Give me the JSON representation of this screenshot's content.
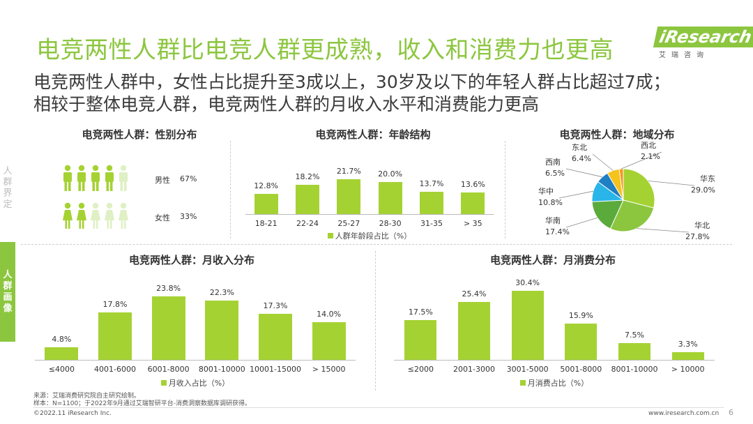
{
  "header": {
    "title": "电竞两性人群比电竞人群更成熟，收入和消费力也更高",
    "subtitle_line1": "电竞两性人群中，女性占比提升至3成以上，30岁及以下的年轻人群占比超过7成；",
    "subtitle_line2": "相较于整体电竞人群，电竞两性人群的月收入水平和消费能力更高"
  },
  "logo": {
    "main": "iResearch",
    "sub": "艾瑞咨询"
  },
  "side": {
    "upper": [
      "人",
      "群",
      "界",
      "定"
    ],
    "tab": [
      "人",
      "群",
      "画",
      "像"
    ]
  },
  "colors": {
    "accent": "#8cc63f",
    "bar": "#a5d233",
    "pale": "#dff0c4"
  },
  "gender": {
    "title": "电竞两性人群：性别分布",
    "rows": [
      {
        "label": "男性",
        "value": "67%",
        "icon": "male-person-icon"
      },
      {
        "label": "女性",
        "value": "33%",
        "icon": "female-person-icon"
      }
    ]
  },
  "chart_data": [
    {
      "type": "bar",
      "id": "age",
      "title": "电竞两性人群：年龄结构",
      "categories": [
        "18-21",
        "22-24",
        "25-27",
        "28-30",
        "31-35",
        "> 35"
      ],
      "values": [
        12.8,
        18.2,
        21.7,
        20.0,
        13.7,
        13.6
      ],
      "labels": [
        "12.8%",
        "18.2%",
        "21.7%",
        "20.0%",
        "13.7%",
        "13.6%"
      ],
      "legend": "人群年龄段占比（%）"
    },
    {
      "type": "pie",
      "id": "region",
      "title": "电竞两性人群：地域分布",
      "slices": [
        {
          "name": "华东",
          "value": 29.0,
          "label": "29.0%",
          "color": "#a5d233"
        },
        {
          "name": "华北",
          "value": 27.8,
          "label": "27.8%",
          "color": "#8cc63f"
        },
        {
          "name": "华南",
          "value": 17.4,
          "label": "17.4%",
          "color": "#5aab3c"
        },
        {
          "name": "华中",
          "value": 10.8,
          "label": "10.8%",
          "color": "#29b5e8"
        },
        {
          "name": "西南",
          "value": 6.5,
          "label": "6.5%",
          "color": "#1f7fc4"
        },
        {
          "name": "东北",
          "value": 6.4,
          "label": "6.4%",
          "color": "#f6c21c"
        },
        {
          "name": "西北",
          "value": 2.1,
          "label": "2.1%",
          "color": "#f39a1e"
        }
      ]
    },
    {
      "type": "bar",
      "id": "income",
      "title": "电竞两性人群：月收入分布",
      "categories": [
        "≤4000",
        "4001-6000",
        "6001-8000",
        "8001-10000",
        "10001-15000",
        "> 15000"
      ],
      "values": [
        4.8,
        17.8,
        23.8,
        22.3,
        17.3,
        14.0
      ],
      "labels": [
        "4.8%",
        "17.8%",
        "23.8%",
        "22.3%",
        "17.3%",
        "14.0%"
      ],
      "legend": "月收入占比（%）"
    },
    {
      "type": "bar",
      "id": "spend",
      "title": "电竞两性人群：月消费分布",
      "categories": [
        "≤2000",
        "2001-3000",
        "3001-5000",
        "5001-8000",
        "8001-10000",
        "> 10000"
      ],
      "values": [
        17.5,
        25.4,
        30.4,
        15.9,
        7.5,
        3.3
      ],
      "labels": [
        "17.5%",
        "25.4%",
        "30.4%",
        "15.9%",
        "7.5%",
        "3.3%"
      ],
      "legend": "月消费占比（%）"
    }
  ],
  "footer": {
    "source": "来源：艾瑞消费研究院自主研究绘制。",
    "sample": "样本：N=1100；于2022年9月通过艾瑞智研平台-消费洞察数据库调研获得。",
    "copyright": "©2022.11 iResearch Inc.",
    "site": "www.iresearch.com.cn",
    "page": "6"
  }
}
